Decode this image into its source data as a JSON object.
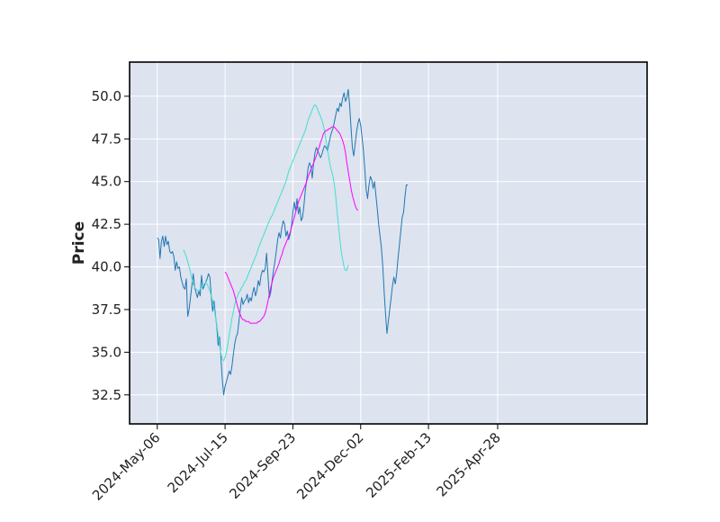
{
  "chart_data": {
    "type": "line",
    "title": "",
    "xlabel": "",
    "ylabel": "Price",
    "ylim": [
      30.8,
      52.0
    ],
    "yticks": [
      "32.5",
      "35.0",
      "37.5",
      "40.0",
      "42.5",
      "45.0",
      "47.5",
      "50.0"
    ],
    "xticks": [
      "2024-May-06",
      "2024-Jul-15",
      "2024-Sep-23",
      "2024-Dec-02",
      "2025-Feb-13",
      "2025-Apr-28"
    ],
    "x_index_range": [
      -20,
      354
    ],
    "xtick_index": [
      0,
      49,
      98,
      147,
      196,
      246
    ],
    "grid": true,
    "background": "#dde3ef",
    "series": [
      {
        "name": "",
        "color": "#1f77b4",
        "start_index": 0,
        "values": [
          41.7,
          41.6,
          40.5,
          41.5,
          41.8,
          41.2,
          41.8,
          41.3,
          41.5,
          40.9,
          40.8,
          40.9,
          40.6,
          39.8,
          40.3,
          39.9,
          40.0,
          39.4,
          39.1,
          38.8,
          38.7,
          39.3,
          37.1,
          37.5,
          38.2,
          38.9,
          39.6,
          38.8,
          38.5,
          38.2,
          38.6,
          38.3,
          39.5,
          38.7,
          38.9,
          39.1,
          39.3,
          39.6,
          39.4,
          38.3,
          37.4,
          38.0,
          37.2,
          36.5,
          35.4,
          35.9,
          34.7,
          33.4,
          32.5,
          33.0,
          33.3,
          33.6,
          33.9,
          33.7,
          34.2,
          34.9,
          35.5,
          35.9,
          36.1,
          36.8,
          37.5,
          38.2,
          37.8,
          38.0,
          38.1,
          38.4,
          37.9,
          38.2,
          38.0,
          38.5,
          38.8,
          38.3,
          38.6,
          39.2,
          38.9,
          39.5,
          39.8,
          39.7,
          39.9,
          40.8,
          39.5,
          38.2,
          38.5,
          39.2,
          39.8,
          40.3,
          40.9,
          41.6,
          42.0,
          41.7,
          42.3,
          42.7,
          42.5,
          41.8,
          42.1,
          41.6,
          41.9,
          42.4,
          43.2,
          43.8,
          43.3,
          44.0,
          43.1,
          43.5,
          42.7,
          42.9,
          43.6,
          44.5,
          45.1,
          45.8,
          46.1,
          45.9,
          45.2,
          46.1,
          46.7,
          47.0,
          46.8,
          46.6,
          46.4,
          46.6,
          46.9,
          47.1,
          47.0,
          46.8,
          47.2,
          47.6,
          47.9,
          48.1,
          48.5,
          48.9,
          49.3,
          49.1,
          49.6,
          49.4,
          49.9,
          50.2,
          49.7,
          49.9,
          50.4,
          49.5,
          48.2,
          47.0,
          46.5,
          47.2,
          47.9,
          48.4,
          48.7,
          48.3,
          47.6,
          46.8,
          45.7,
          44.5,
          44.0,
          44.8,
          45.3,
          45.1,
          44.6,
          45.0,
          44.2,
          43.4,
          42.5,
          41.8,
          41.1,
          40.0,
          38.5,
          37.2,
          36.1,
          36.8,
          37.5,
          38.2,
          38.9,
          39.4,
          39.0,
          39.6,
          40.5,
          41.3,
          42.1,
          42.9,
          43.2,
          44.1,
          44.8,
          44.8
        ]
      },
      {
        "name": "",
        "color": "#40e0d0",
        "start_index": 19,
        "values": [
          41.0,
          40.8,
          40.6,
          40.3,
          40.0,
          39.7,
          39.3,
          39.0,
          38.8,
          38.7,
          38.6,
          38.6,
          38.7,
          38.8,
          38.9,
          39.0,
          39.1,
          39.0,
          38.8,
          38.6,
          38.3,
          38.0,
          37.6,
          37.1,
          36.6,
          36.0,
          35.4,
          34.9,
          34.6,
          34.5,
          34.7,
          35.0,
          35.5,
          36.0,
          36.5,
          37.0,
          37.4,
          37.8,
          38.1,
          38.3,
          38.5,
          38.6,
          38.8,
          38.9,
          39.1,
          39.2,
          39.4,
          39.6,
          39.8,
          40.0,
          40.2,
          40.4,
          40.6,
          40.8,
          41.1,
          41.3,
          41.5,
          41.7,
          41.9,
          42.1,
          42.3,
          42.5,
          42.7,
          42.9,
          43.0,
          43.2,
          43.4,
          43.6,
          43.8,
          44.0,
          44.2,
          44.4,
          44.6,
          44.8,
          45.0,
          45.3,
          45.6,
          45.8,
          46.0,
          46.2,
          46.4,
          46.6,
          46.8,
          47.0,
          47.2,
          47.4,
          47.6,
          47.8,
          48.0,
          48.3,
          48.6,
          48.8,
          49.0,
          49.2,
          49.4,
          49.5,
          49.4,
          49.2,
          49.0,
          48.8,
          48.6,
          48.3,
          47.9,
          47.4,
          46.9,
          46.4,
          45.9,
          45.6,
          45.3,
          44.8,
          44.1,
          43.2,
          42.4,
          41.6,
          40.9,
          40.4,
          40.0,
          39.8,
          39.8,
          40.1
        ]
      },
      {
        "name": "",
        "color": "#ff00ff",
        "start_index": 49,
        "values": [
          39.7,
          39.6,
          39.4,
          39.2,
          39.0,
          38.8,
          38.6,
          38.3,
          38.0,
          37.7,
          37.4,
          37.2,
          37.0,
          36.9,
          36.9,
          36.8,
          36.8,
          36.8,
          36.7,
          36.7,
          36.7,
          36.7,
          36.7,
          36.7,
          36.8,
          36.8,
          36.9,
          37.0,
          37.1,
          37.3,
          37.6,
          38.0,
          38.4,
          38.8,
          39.1,
          39.4,
          39.6,
          39.8,
          40.0,
          40.2,
          40.5,
          40.7,
          41.0,
          41.2,
          41.4,
          41.6,
          41.8,
          42.0,
          42.3,
          42.6,
          42.9,
          43.2,
          43.5,
          43.8,
          44.0,
          44.2,
          44.4,
          44.6,
          44.8,
          45.0,
          45.3,
          45.5,
          45.7,
          45.9,
          46.1,
          46.3,
          46.5,
          46.8,
          47.0,
          47.3,
          47.5,
          47.8,
          47.9,
          48.0,
          48.0,
          48.1,
          48.1,
          48.2,
          48.2,
          48.2,
          48.1,
          48.0,
          47.9,
          47.8,
          47.6,
          47.4,
          47.1,
          46.7,
          46.1,
          45.6,
          45.1,
          44.6,
          44.2,
          43.9,
          43.6,
          43.4,
          43.3
        ]
      }
    ]
  }
}
